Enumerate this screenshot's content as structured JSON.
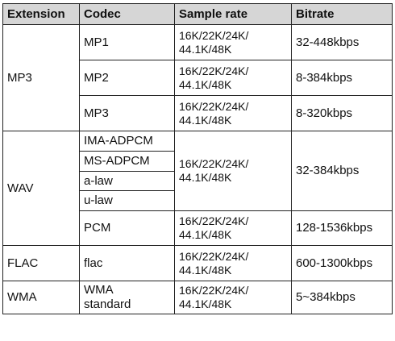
{
  "table": {
    "headers": [
      "Extension",
      "Codec",
      "Sample rate",
      "Bitrate"
    ],
    "rows": {
      "mp3": {
        "extension": "MP3",
        "mp1": {
          "codec": "MP1",
          "rate_line1": "16K/22K/24K/",
          "rate_line2": "44.1K/48K",
          "bitrate": "32-448kbps"
        },
        "mp2": {
          "codec": "MP2",
          "rate_line1": "16K/22K/24K/",
          "rate_line2": "44.1K/48K",
          "bitrate": "8-384kbps"
        },
        "mp3": {
          "codec": "MP3",
          "rate_line1": "16K/22K/24K/",
          "rate_line2": "44.1K/48K",
          "bitrate": "8-320kbps"
        }
      },
      "wav": {
        "extension": "WAV",
        "codecs": [
          "IMA-ADPCM",
          "MS-ADPCM",
          "a-law",
          "u-law"
        ],
        "group_rate_line1": "16K/22K/24K/",
        "group_rate_line2": "44.1K/48K",
        "group_bitrate": "32-384kbps",
        "pcm": {
          "codec": "PCM",
          "rate_line1": "16K/22K/24K/",
          "rate_line2": "44.1K/48K",
          "bitrate": "128-1536kbps"
        }
      },
      "flac": {
        "extension": "FLAC",
        "codec": "flac",
        "rate_line1": "16K/22K/24K/",
        "rate_line2": "44.1K/48K",
        "bitrate": "600-1300kbps"
      },
      "wma": {
        "extension": "WMA",
        "codec_line1": "WMA",
        "codec_line2": "standard",
        "rate_line1": "16K/22K/24K/",
        "rate_line2": "44.1K/48K",
        "bitrate": "5~384kbps"
      }
    }
  }
}
